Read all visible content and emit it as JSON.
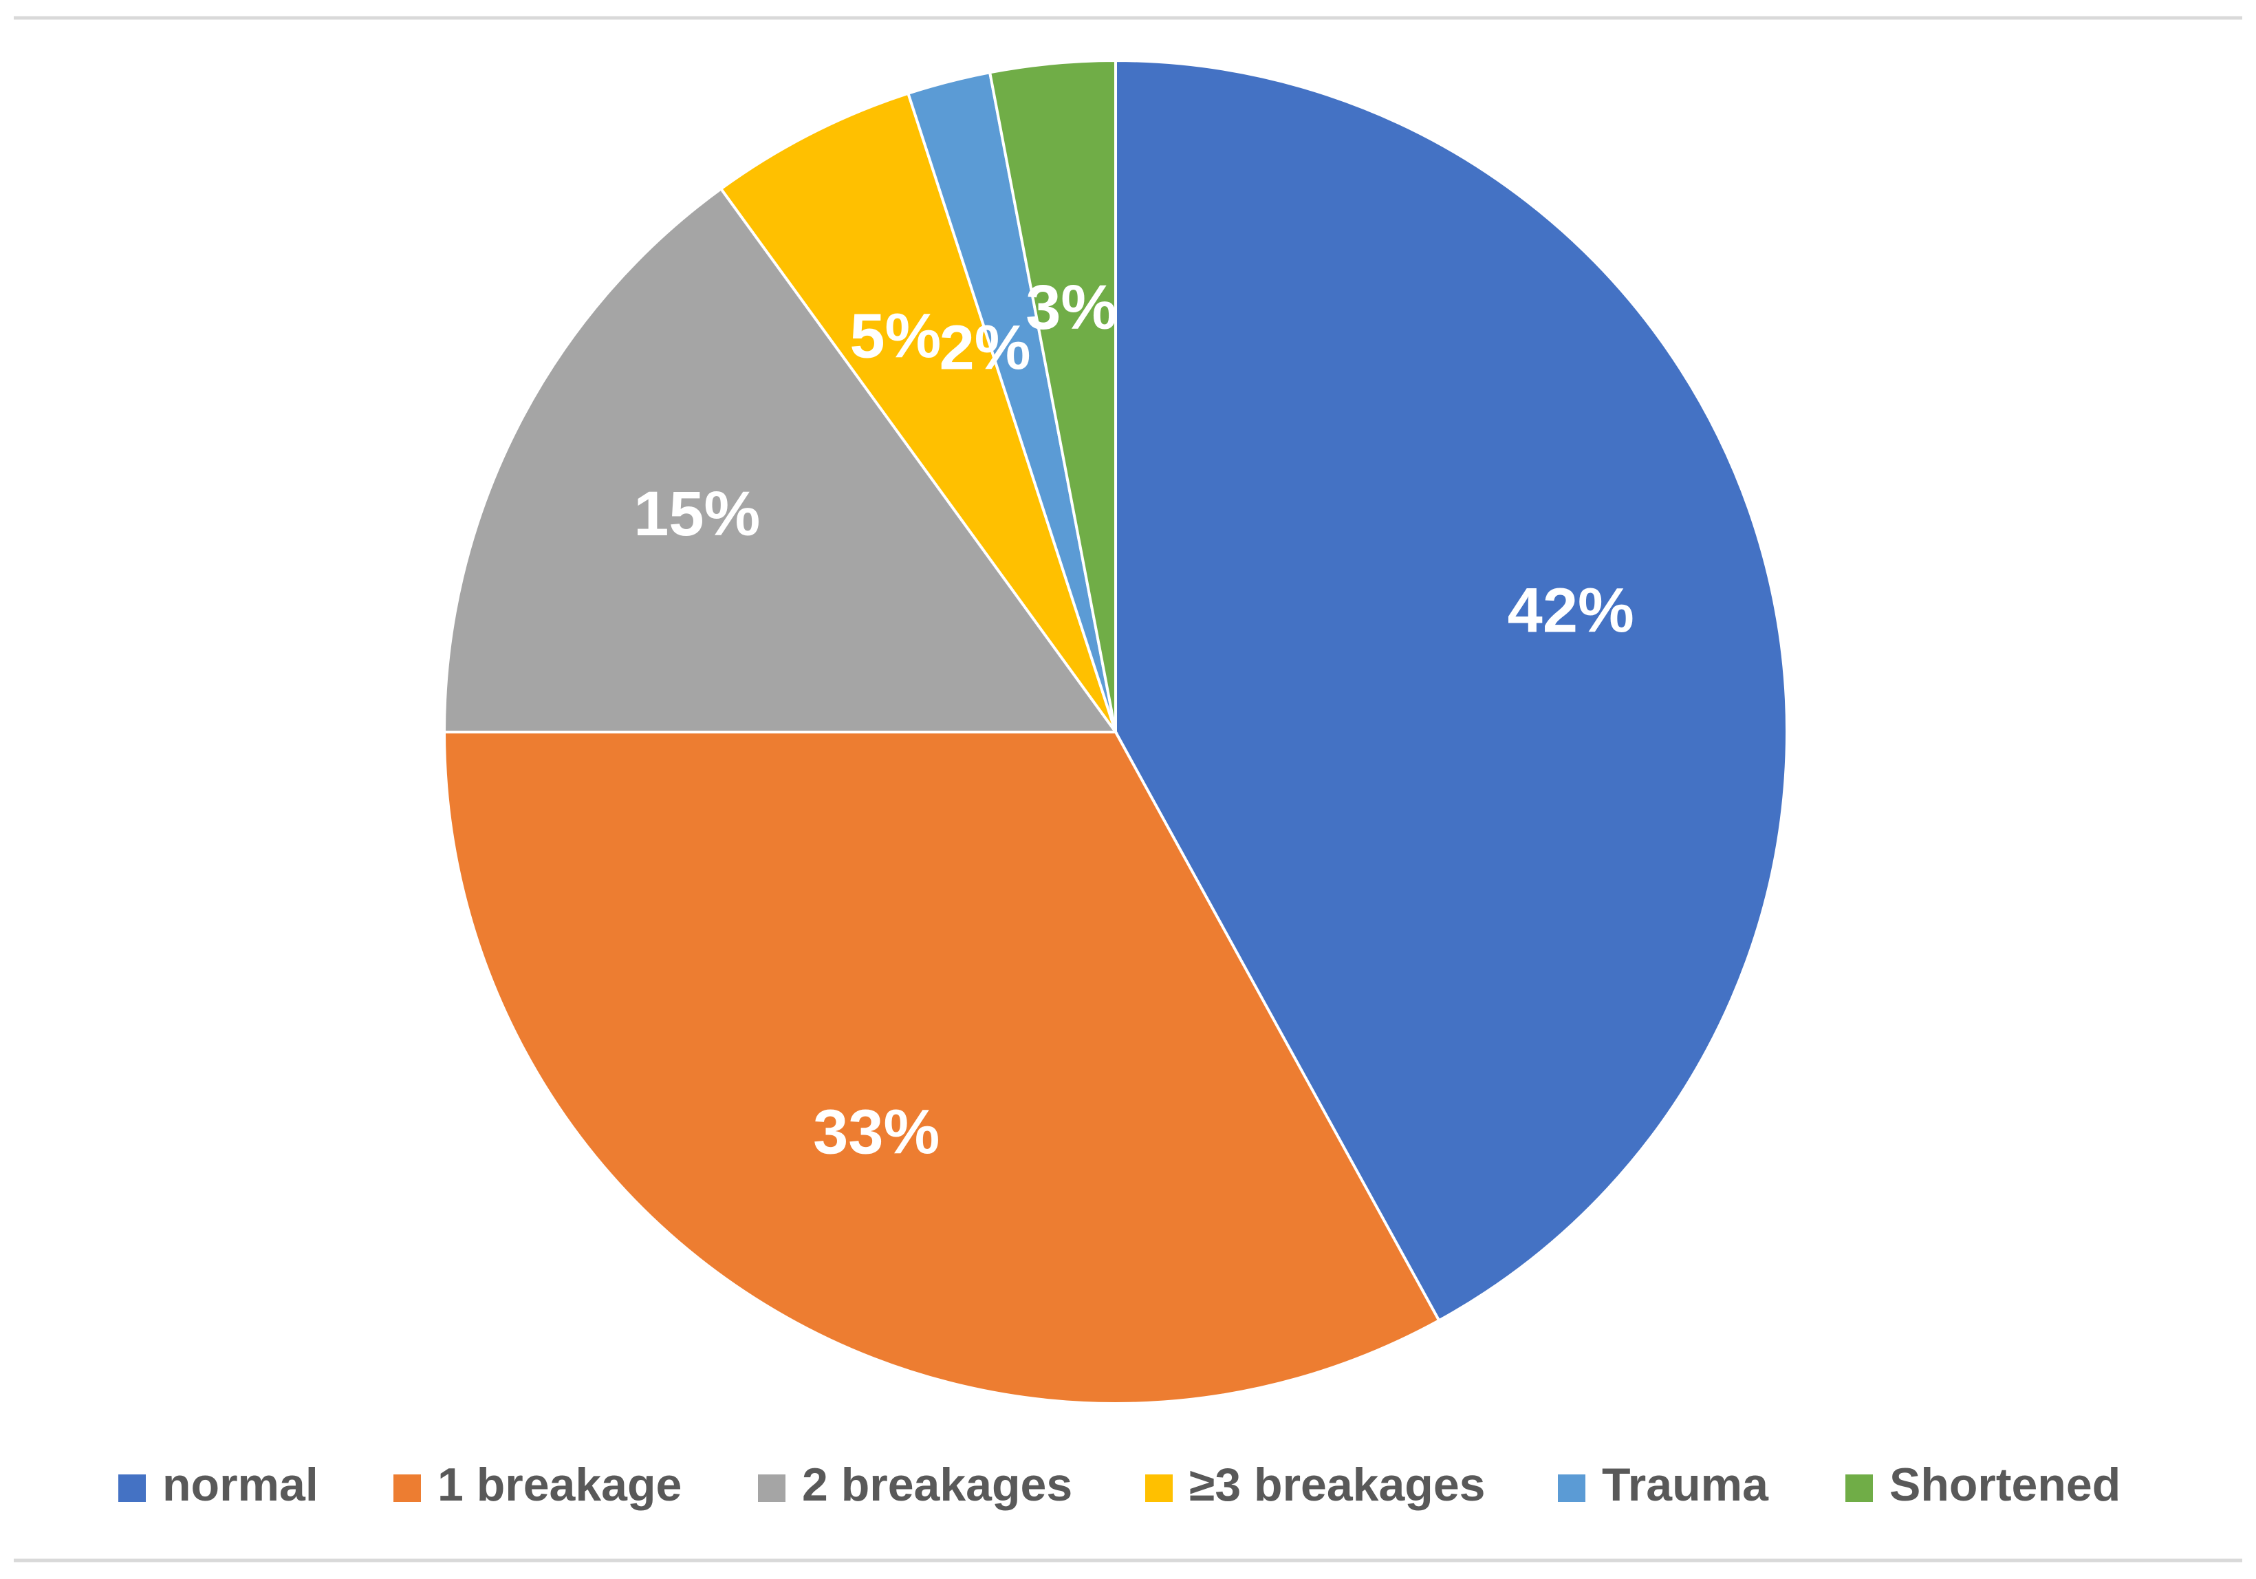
{
  "chart_data": {
    "type": "pie",
    "title": "",
    "start_angle": "12 o'clock, clockwise",
    "legend_position": "bottom",
    "slices": [
      {
        "label": "normal",
        "value": 42,
        "value_label": "42%",
        "color": "#4472c4"
      },
      {
        "label": "1 breakage",
        "value": 33,
        "value_label": "33%",
        "color": "#ed7d31"
      },
      {
        "label": "2 breakages",
        "value": 15,
        "value_label": "15%",
        "color": "#a5a5a5"
      },
      {
        "label": "≥3 breakages",
        "value": 5,
        "value_label": "5%",
        "color": "#ffc000"
      },
      {
        "label": "Trauma",
        "value": 2,
        "value_label": "2%",
        "color": "#5b9bd5"
      },
      {
        "label": "Shortened",
        "value": 3,
        "value_label": "3%",
        "color": "#70ad47"
      }
    ]
  }
}
